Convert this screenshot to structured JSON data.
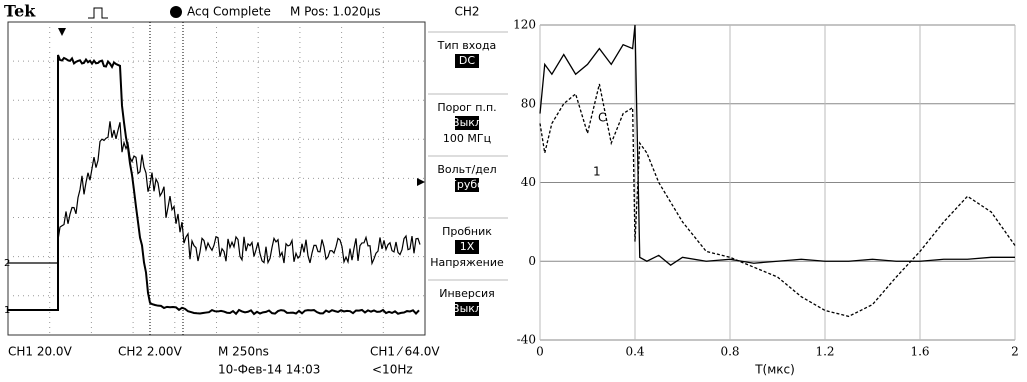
{
  "scope": {
    "brand": "Tek",
    "status": "Acq Complete",
    "position": "M Pos: 1.020µs",
    "menu": {
      "channel": "CH2",
      "items": [
        {
          "label": "Тип входа",
          "value": "DC"
        },
        {
          "label": "Порог п.п.",
          "value": "Выкл",
          "extra": "100 МГц"
        },
        {
          "label": "Вольт/дел",
          "value": "Грубо"
        },
        {
          "label": "Пробник",
          "value": "1X",
          "extra": "Напряжение"
        },
        {
          "label": "Инверсия",
          "value": "Выкл"
        }
      ]
    },
    "markers": [
      "2",
      "1"
    ],
    "footer": {
      "ch1": "CH1  20.0V",
      "ch2": "CH2  2.00V",
      "timebase": "M 250ns",
      "trigger": "CH1 ⁄ 64.0V",
      "date": "10-Фев-14 14:03",
      "freq": "<10Hz"
    }
  },
  "chart_data": {
    "type": "line",
    "x_label": "T(мкс)",
    "x": [
      0,
      0.02,
      0.05,
      0.1,
      0.15,
      0.2,
      0.25,
      0.3,
      0.35,
      0.39,
      0.4,
      0.42,
      0.45,
      0.5,
      0.55,
      0.6,
      0.7,
      0.8,
      0.9,
      1.0,
      1.1,
      1.2,
      1.3,
      1.4,
      1.5,
      1.6,
      1.7,
      1.8,
      1.9,
      2.0
    ],
    "series": [
      {
        "name": "C",
        "color": "#000000",
        "dash": false,
        "values": [
          75,
          100,
          95,
          105,
          95,
          100,
          108,
          100,
          110,
          108,
          120,
          2,
          0,
          3,
          -2,
          2,
          0,
          1,
          -1,
          0,
          1,
          0,
          0,
          1,
          0,
          0,
          1,
          1,
          2,
          2
        ]
      },
      {
        "name": "1",
        "color": "#000000",
        "dash": true,
        "values": [
          70,
          55,
          70,
          80,
          85,
          65,
          90,
          60,
          75,
          78,
          10,
          60,
          55,
          40,
          30,
          20,
          5,
          2,
          -3,
          -8,
          -18,
          -25,
          -28,
          -22,
          -8,
          5,
          20,
          33,
          25,
          8
        ]
      }
    ],
    "xlim": [
      0,
      2
    ],
    "xticks": [
      0,
      0.4,
      0.8,
      1.2,
      1.6,
      2
    ],
    "ylim": [
      -40,
      120
    ],
    "yticks": [
      -40,
      0,
      40,
      80,
      120
    ],
    "grid": true
  }
}
